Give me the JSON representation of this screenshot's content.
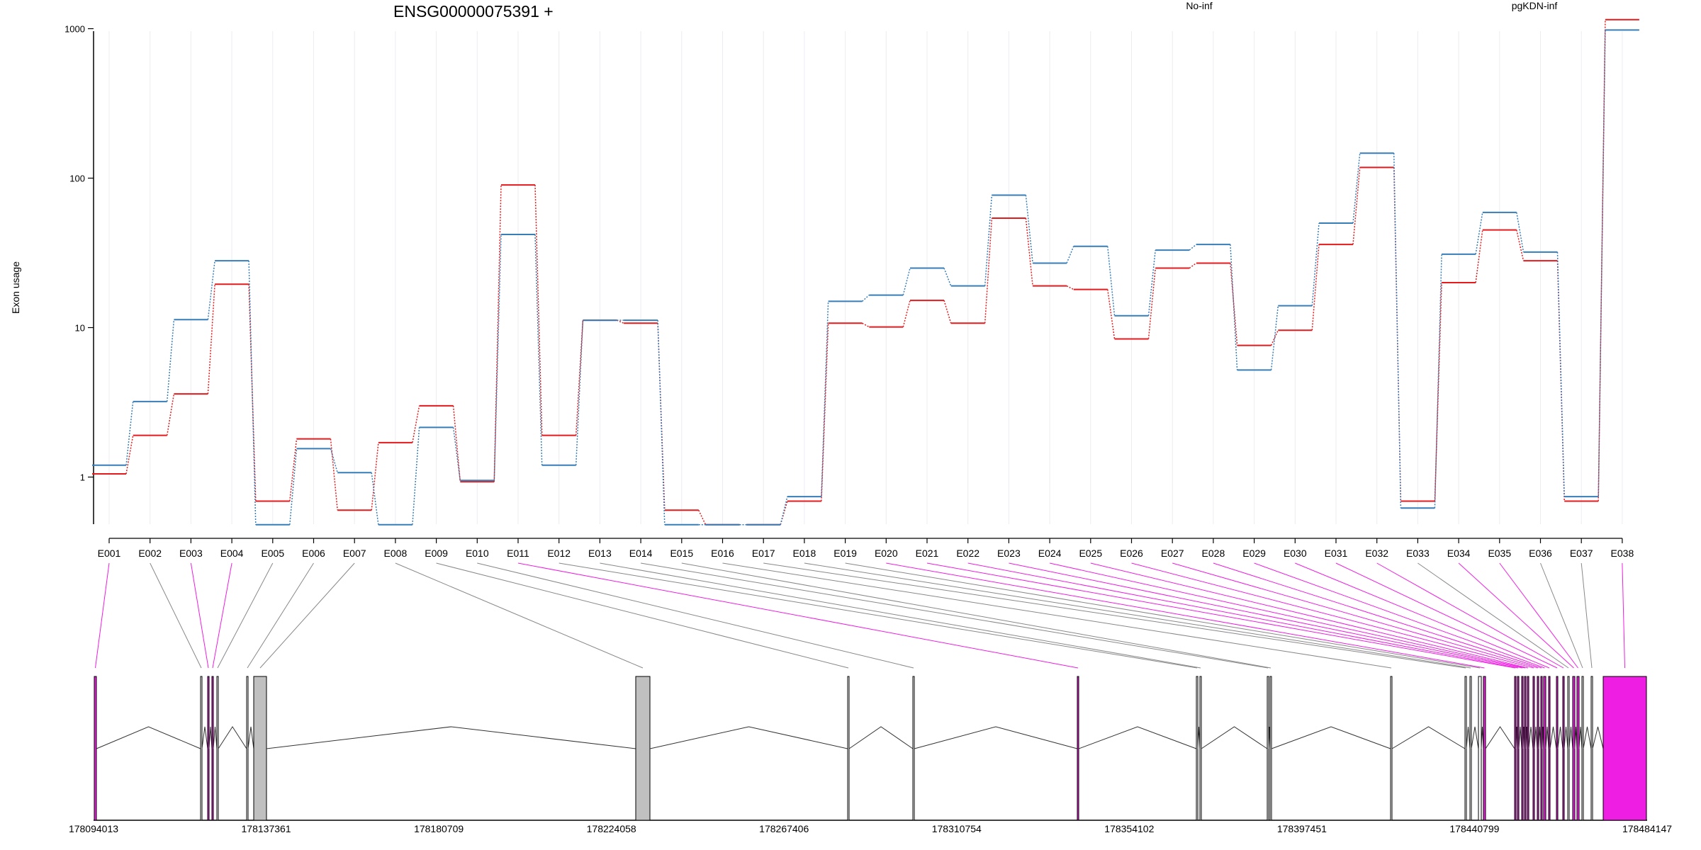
{
  "chart_data": {
    "type": "line",
    "title": "ENSG00000075391 +",
    "ylabel": "Exon usage",
    "yscale": "log",
    "ylim": [
      0.43,
      1350
    ],
    "yticks": [
      1,
      10,
      100,
      1000
    ],
    "ytick_labels": [
      "1",
      "10",
      "100",
      "1000"
    ],
    "grid": "vertical lines at each exon",
    "legend_placement": "top",
    "categories": [
      "E001",
      "E002",
      "E003",
      "E004",
      "E005",
      "E006",
      "E007",
      "E008",
      "E009",
      "E010",
      "E011",
      "E012",
      "E013",
      "E014",
      "E015",
      "E016",
      "E017",
      "E018",
      "E019",
      "E020",
      "E021",
      "E022",
      "E023",
      "E024",
      "E025",
      "E026",
      "E027",
      "E028",
      "E029",
      "E030",
      "E031",
      "E032",
      "E033",
      "E034",
      "E035",
      "E036",
      "E037",
      "E038"
    ],
    "series": [
      {
        "name": "No-inf",
        "color": "#e41a1c",
        "values": [
          1.05,
          1.9,
          3.6,
          19.5,
          0.69,
          1.8,
          0.6,
          1.7,
          3.0,
          0.93,
          90,
          1.9,
          11.2,
          10.7,
          0.6,
          0.48,
          0.48,
          0.69,
          10.7,
          10.1,
          15.2,
          10.7,
          54,
          19,
          18,
          8.4,
          25,
          27,
          7.6,
          9.6,
          36,
          118,
          0.69,
          20,
          45,
          28,
          0.69,
          1150
        ]
      },
      {
        "name": "pgKDN-inf",
        "color": "#377eb8",
        "values": [
          1.2,
          3.2,
          11.3,
          28,
          0.48,
          1.55,
          1.07,
          0.48,
          2.15,
          0.95,
          42,
          1.2,
          11.2,
          11.2,
          0.48,
          0.48,
          0.48,
          0.74,
          15,
          16.5,
          25,
          19,
          77,
          27,
          35,
          12,
          33,
          36,
          5.2,
          14,
          50,
          147,
          0.62,
          31,
          59,
          32,
          0.74,
          980
        ]
      }
    ],
    "gene_model": {
      "coordinate_ticks": [
        "178094013",
        "178137361",
        "178180709",
        "178224058",
        "178267406",
        "178310754",
        "178354102",
        "178397451",
        "178440799",
        "178484147"
      ],
      "significant_color": "#ee1fe2",
      "other_color": "#c0c0c0",
      "significant_exons": [
        "E001",
        "E003",
        "E004",
        "E011",
        "E020",
        "E021",
        "E022",
        "E023",
        "E024",
        "E025",
        "E026",
        "E027",
        "E028",
        "E029",
        "E030",
        "E031",
        "E032",
        "E034",
        "E035",
        "E038"
      ]
    }
  }
}
